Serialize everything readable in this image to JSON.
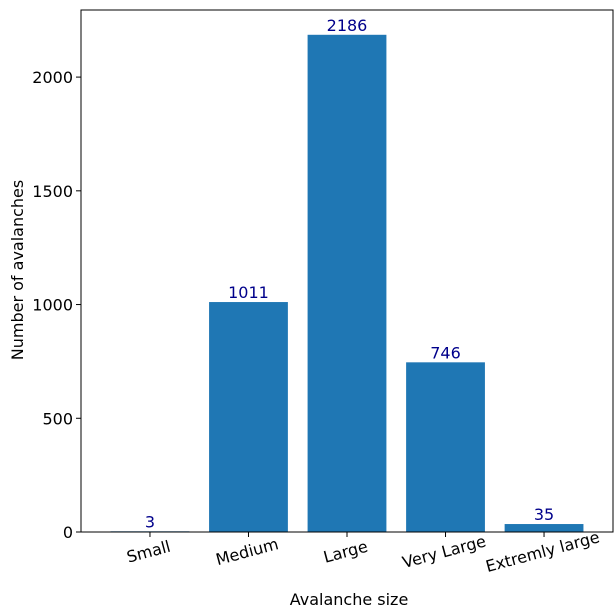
{
  "chart_data": {
    "type": "bar",
    "title": "",
    "xlabel": "Avalanche size",
    "ylabel": "Number of avalanches",
    "categories": [
      "Small",
      "Medium",
      "Large",
      "Very Large",
      "Extremly large"
    ],
    "values": [
      3,
      1011,
      2186,
      746,
      35
    ],
    "data_labels": [
      "3",
      "1011",
      "2186",
      "746",
      "35"
    ],
    "ylim": [
      0,
      2295
    ],
    "yticks": [
      0,
      500,
      1000,
      1500,
      2000
    ],
    "ytick_labels": [
      "0",
      "500",
      "1000",
      "1500",
      "2000"
    ],
    "xtick_rotation_deg": -15,
    "grid": false,
    "legend": "none",
    "bar_color": "#1f77b4",
    "data_label_color": "#00008b"
  }
}
